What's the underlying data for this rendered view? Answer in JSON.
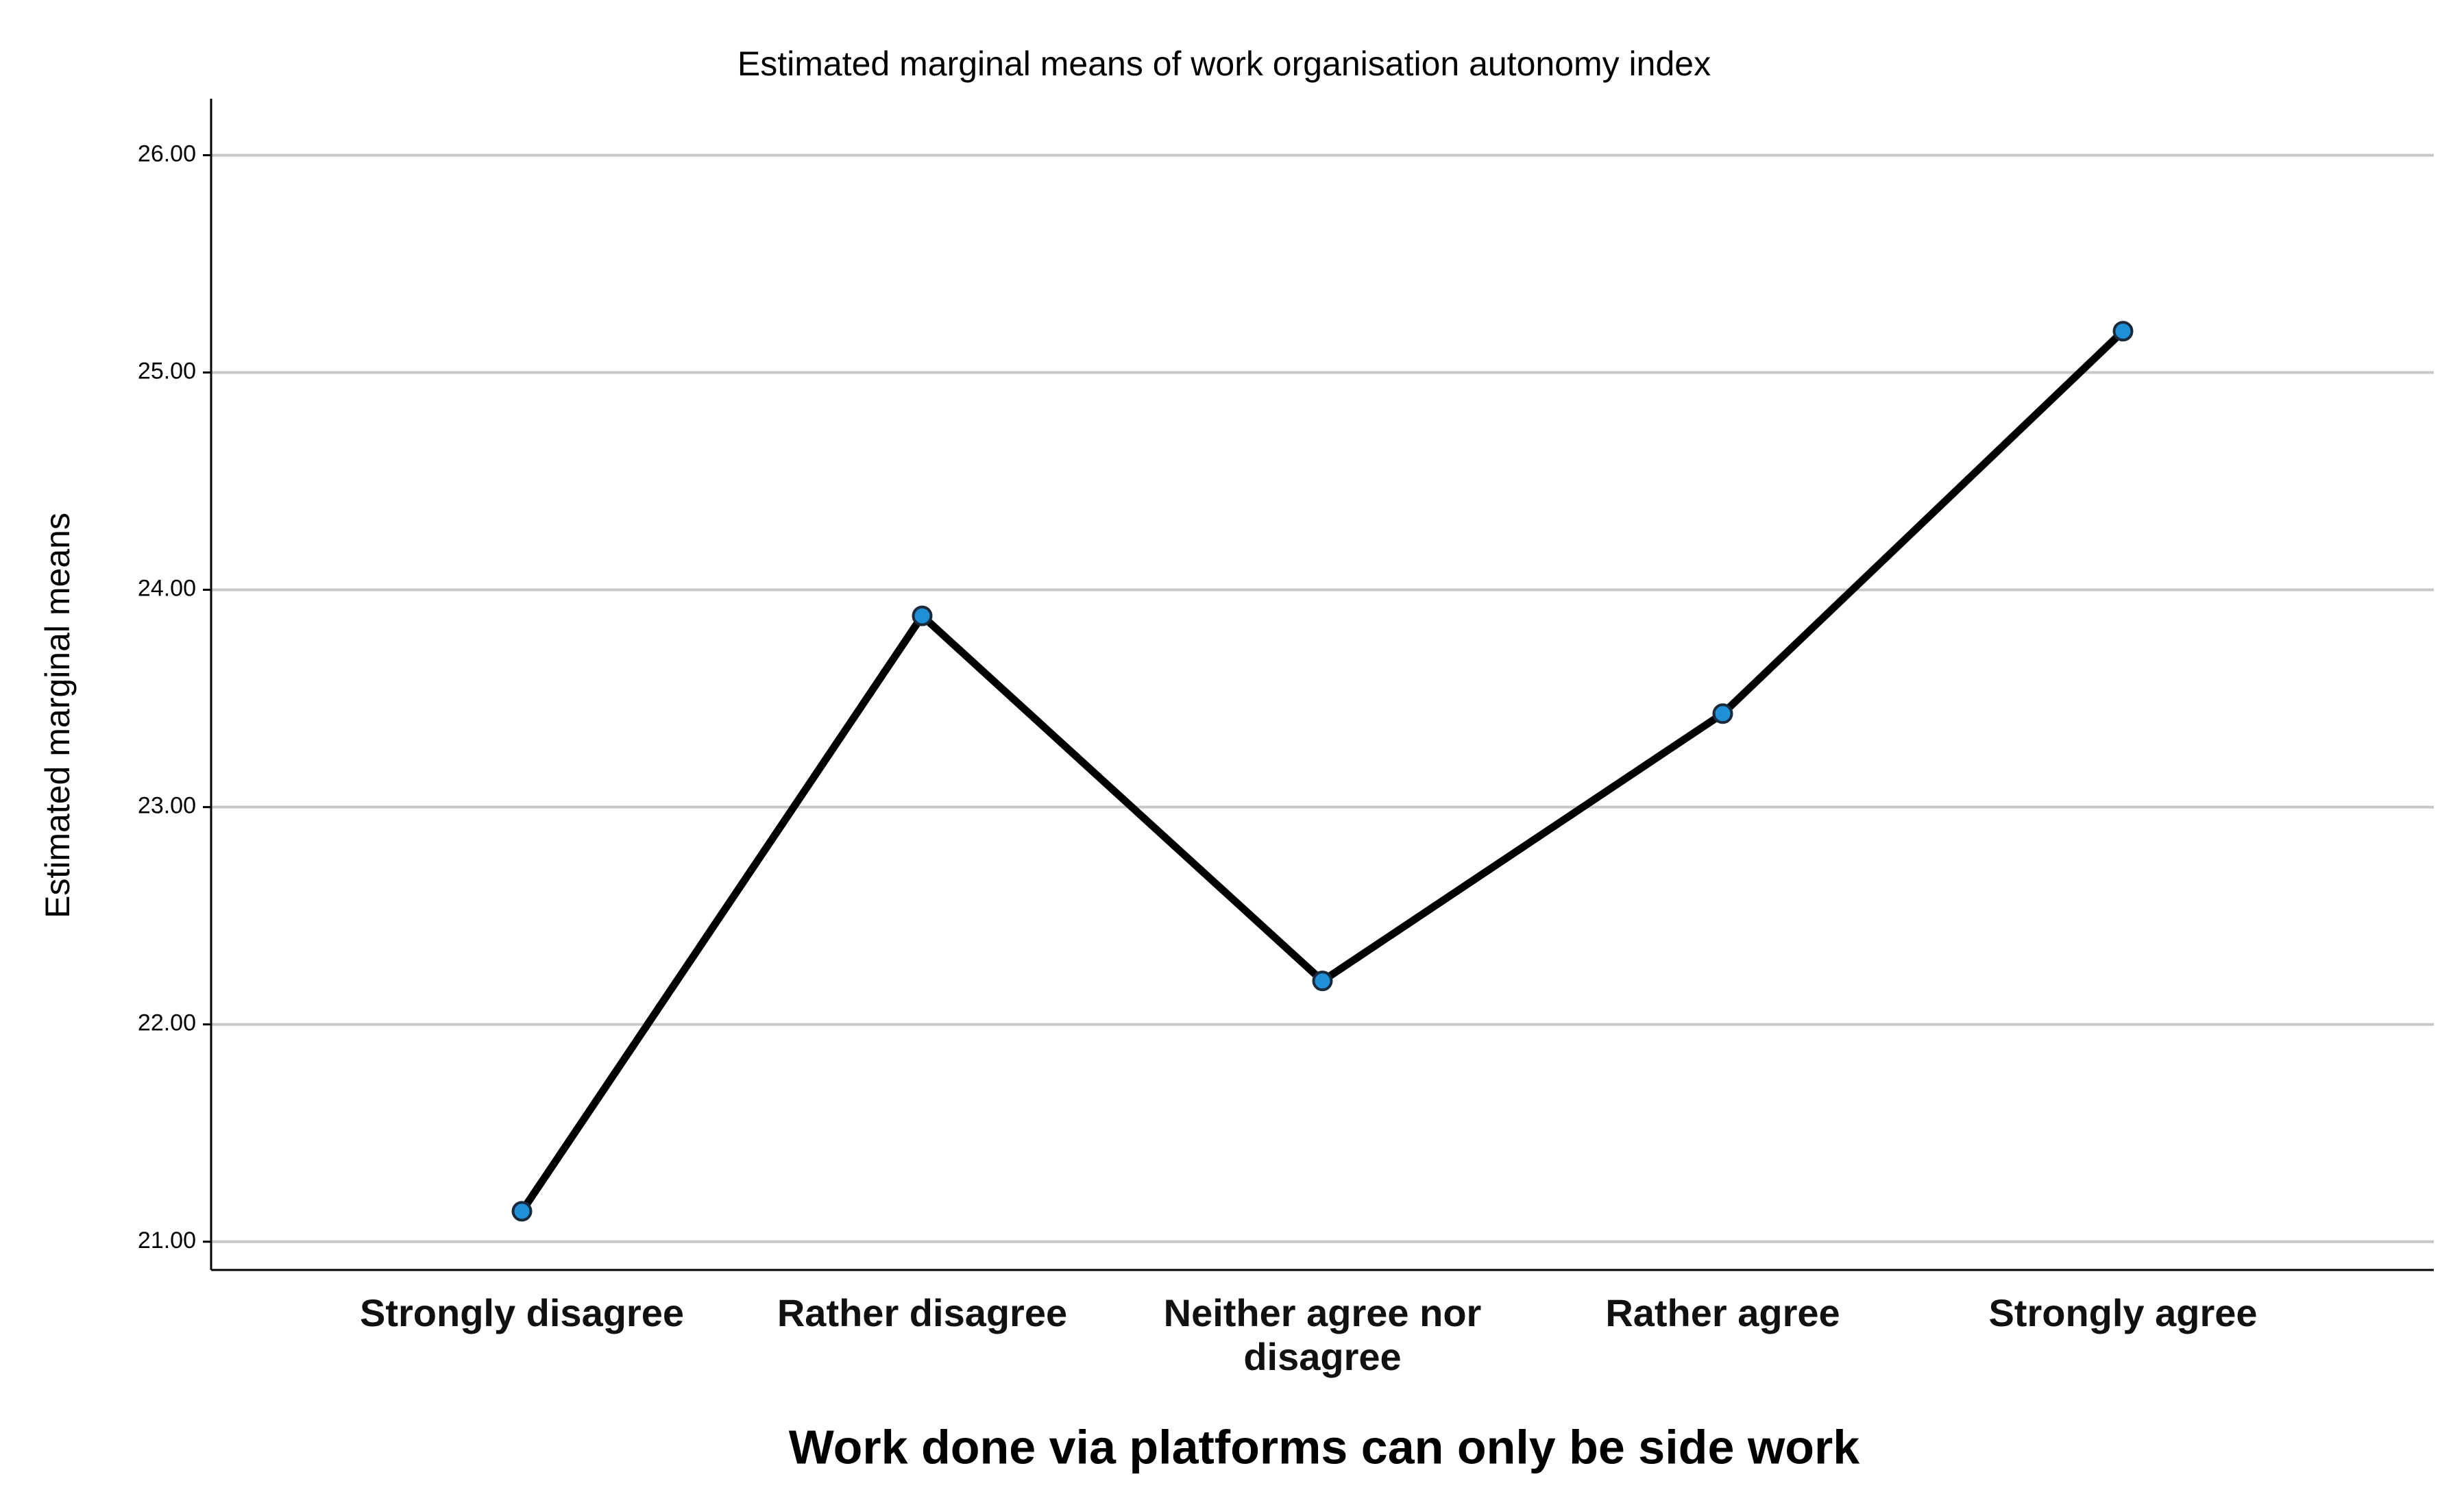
{
  "chart_data": {
    "type": "line",
    "title": "Estimated marginal means of work organisation autonomy index",
    "x_label": "Work done via platforms can only be side work",
    "y_label": "Estimated marginal means",
    "categories": [
      "Strongly disagree",
      "Rather disagree",
      "Neither agree nor disagree",
      "Rather agree",
      "Strongly agree"
    ],
    "values": [
      21.14,
      23.88,
      22.2,
      23.43,
      25.19
    ],
    "color": "#000000",
    "marker_color": "#1f8fd6",
    "ylim": [
      20.87,
      26.26
    ],
    "yticks": [
      {
        "value": 21,
        "label": "21.00"
      },
      {
        "value": 22,
        "label": "22.00"
      },
      {
        "value": 23,
        "label": "23.00"
      },
      {
        "value": 24,
        "label": "24.00"
      },
      {
        "value": 25,
        "label": "25.00"
      },
      {
        "value": 26,
        "label": "26.00"
      }
    ],
    "grid": true
  }
}
